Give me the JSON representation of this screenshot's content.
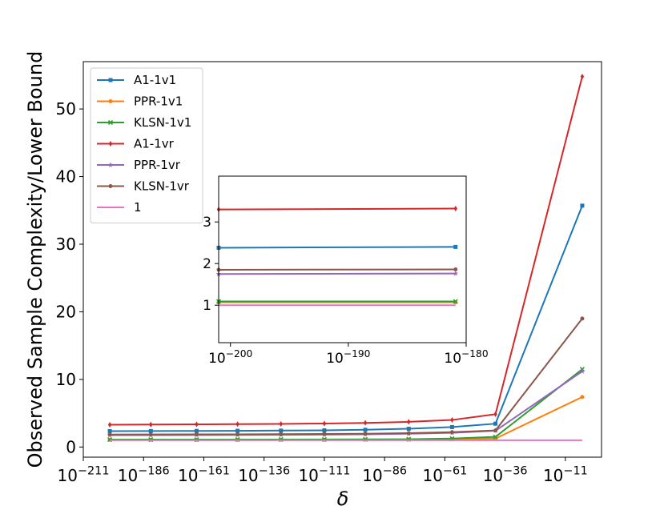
{
  "chart_data": [
    {
      "type": "line",
      "xlabel": "δ",
      "ylabel": "Observed Sample Complexity/Lower Bound",
      "x_scale": "log10",
      "x_exponents": [
        -200,
        -175,
        -150,
        -125,
        -100,
        -75,
        -50,
        -25,
        -2
      ],
      "xlim_exponent": [
        -211,
        4
      ],
      "ylim": [
        -1.5,
        57
      ],
      "x_ticks": [
        "10^{-211}",
        "10^{-186}",
        "10^{-161}",
        "10^{-136}",
        "10^{-111}",
        "10^{-86}",
        "10^{-61}",
        "10^{-36}",
        "10^{-11}"
      ],
      "x_tick_exponents": [
        -211,
        -186,
        -161,
        -136,
        -111,
        -86,
        -61,
        -36,
        -11
      ],
      "y_ticks": [
        0,
        10,
        20,
        30,
        40,
        50
      ],
      "legend_position": "upper-left",
      "series": [
        {
          "name": "A1-1v1",
          "color": "#1f77b4",
          "marker": "square",
          "values": [
            2.35,
            2.36,
            2.38,
            2.4,
            2.43,
            2.47,
            2.55,
            2.7,
            2.95,
            3.45,
            35.7
          ]
        },
        {
          "name": "PPR-1v1",
          "color": "#ff7f0e",
          "marker": "circle",
          "values": [
            1.07,
            1.07,
            1.07,
            1.07,
            1.08,
            1.08,
            1.09,
            1.1,
            1.15,
            1.25,
            7.4
          ]
        },
        {
          "name": "KLSN-1v1",
          "color": "#2ca02c",
          "marker": "x",
          "values": [
            1.1,
            1.1,
            1.1,
            1.11,
            1.11,
            1.12,
            1.13,
            1.15,
            1.25,
            1.5,
            11.5
          ]
        },
        {
          "name": "A1-1vr",
          "color": "#d62728",
          "marker": "diamond",
          "values": [
            3.3,
            3.32,
            3.35,
            3.38,
            3.42,
            3.48,
            3.57,
            3.72,
            4.0,
            4.85,
            54.8
          ]
        },
        {
          "name": "PPR-1vr",
          "color": "#9467bd",
          "marker": "star",
          "values": [
            1.75,
            1.76,
            1.77,
            1.78,
            1.8,
            1.83,
            1.88,
            1.96,
            2.1,
            2.4,
            11.2
          ]
        },
        {
          "name": "KLSN-1vr",
          "color": "#8c564b",
          "marker": "circle",
          "values": [
            1.85,
            1.86,
            1.87,
            1.88,
            1.9,
            1.93,
            1.97,
            2.05,
            2.2,
            2.45,
            19.0
          ]
        },
        {
          "name": "1",
          "color": "#e377c2",
          "marker": "none",
          "values": [
            1,
            1,
            1,
            1,
            1,
            1,
            1,
            1,
            1,
            1,
            1
          ]
        }
      ],
      "x_values_exponent": [
        -200,
        -183,
        -164,
        -147,
        -129,
        -111,
        -94,
        -76,
        -58,
        -40,
        -4
      ]
    },
    {
      "type": "line",
      "inset": true,
      "x_scale": "log10",
      "xlim_exponent": [
        -201,
        -180
      ],
      "ylim": [
        0.1,
        4.1
      ],
      "x_ticks": [
        "10^{-200}",
        "10^{-190}",
        "10^{-180}"
      ],
      "x_tick_exponents": [
        -200,
        -190,
        -180
      ],
      "y_ticks": [
        1,
        2,
        3
      ],
      "x_values_exponent": [
        -201,
        -180.9
      ],
      "series": [
        {
          "name": "A1-1v1",
          "color": "#1f77b4",
          "marker": "square",
          "values": [
            2.38,
            2.4
          ]
        },
        {
          "name": "PPR-1v1",
          "color": "#ff7f0e",
          "marker": "circle",
          "values": [
            1.07,
            1.07
          ]
        },
        {
          "name": "KLSN-1v1",
          "color": "#2ca02c",
          "marker": "x",
          "values": [
            1.09,
            1.09
          ]
        },
        {
          "name": "A1-1vr",
          "color": "#d62728",
          "marker": "diamond",
          "values": [
            3.3,
            3.32
          ]
        },
        {
          "name": "PPR-1vr",
          "color": "#9467bd",
          "marker": "star",
          "values": [
            1.75,
            1.76
          ]
        },
        {
          "name": "KLSN-1vr",
          "color": "#8c564b",
          "marker": "circle",
          "values": [
            1.85,
            1.86
          ]
        },
        {
          "name": "1",
          "color": "#e377c2",
          "marker": "none",
          "values": [
            1.0,
            1.0
          ]
        }
      ]
    }
  ]
}
